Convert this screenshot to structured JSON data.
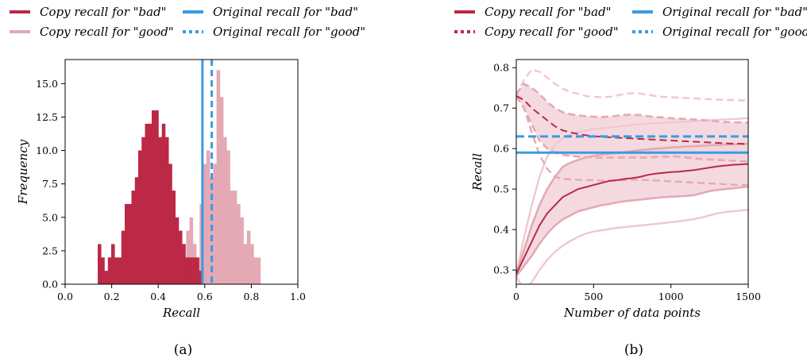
{
  "colors": {
    "bad": "#bb2946",
    "good": "#e4a9b5",
    "orig": "#3a9be2",
    "band": "#f2d3da",
    "faint": "#f0c7d0"
  },
  "chart_data": [
    {
      "type": "histogram",
      "panel_label": "(a)",
      "xlabel": "Recall",
      "ylabel": "Frequency",
      "xlim": [
        0.0,
        1.0
      ],
      "ylim": [
        0,
        16.8
      ],
      "xticks": [
        "0.0",
        "0.2",
        "0.4",
        "0.6",
        "0.8",
        "1.0"
      ],
      "yticks": [
        "0.0",
        "2.5",
        "5.0",
        "7.5",
        "10.0",
        "12.5",
        "15.0"
      ],
      "bin_width": 0.0145,
      "legend": [
        {
          "label": "Copy recall for \"bad\"",
          "style": "solid",
          "color": "bad"
        },
        {
          "label": "Copy recall for \"good\"",
          "style": "solid",
          "color": "good"
        },
        {
          "label": "Original recall for \"bad\"",
          "style": "solid",
          "color": "orig"
        },
        {
          "label": "Original recall for \"good\"",
          "style": "dotted",
          "color": "orig"
        }
      ],
      "series": [
        {
          "name": "Copy recall for \"bad\"",
          "bin_starts": [
            0.14,
            0.1545,
            0.169,
            0.1835,
            0.198,
            0.2125,
            0.227,
            0.2415,
            0.256,
            0.2705,
            0.285,
            0.2995,
            0.314,
            0.3285,
            0.343,
            0.3575,
            0.372,
            0.3865,
            0.401,
            0.4155,
            0.43,
            0.4445,
            0.459,
            0.4735,
            0.488,
            0.5025,
            0.517,
            0.5315,
            0.546,
            0.5605,
            0.575
          ],
          "counts": [
            3,
            2,
            1,
            2,
            3,
            2,
            2,
            4,
            6,
            6,
            7,
            8,
            10,
            11,
            12,
            12,
            13,
            13,
            11,
            12,
            11,
            9,
            7,
            5,
            4,
            3,
            2,
            2,
            2,
            2,
            1
          ]
        },
        {
          "name": "Copy recall for \"good\"",
          "bin_starts": [
            0.52,
            0.5345,
            0.549,
            0.5635,
            0.578,
            0.5925,
            0.607,
            0.6215,
            0.636,
            0.6505,
            0.665,
            0.6795,
            0.694,
            0.7085,
            0.723,
            0.7375,
            0.752,
            0.7665,
            0.781,
            0.7955,
            0.81,
            0.8245
          ],
          "counts": [
            4,
            5,
            3,
            2,
            6,
            9,
            10,
            8,
            9,
            16,
            14,
            11,
            10,
            7,
            7,
            6,
            5,
            3,
            4,
            3,
            2,
            2
          ]
        }
      ],
      "vlines": [
        {
          "name": "Original recall for \"bad\"",
          "x": 0.59,
          "style": "solid"
        },
        {
          "name": "Original recall for \"good\"",
          "x": 0.63,
          "style": "dashed"
        }
      ]
    },
    {
      "type": "line",
      "panel_label": "(b)",
      "xlabel": "Number of data points",
      "ylabel": "Recall",
      "xlim": [
        0,
        1500
      ],
      "ylim": [
        0.265,
        0.82
      ],
      "xticks": [
        "0",
        "500",
        "1000",
        "1500"
      ],
      "yticks": [
        "0.3",
        "0.4",
        "0.5",
        "0.6",
        "0.7",
        "0.8"
      ],
      "legend": [
        {
          "label": "Copy recall for \"bad\"",
          "style": "solid",
          "color": "bad"
        },
        {
          "label": "Copy recall for \"good\"",
          "style": "dotted",
          "color": "bad"
        },
        {
          "label": "Original recall for \"bad\"",
          "style": "solid",
          "color": "orig"
        },
        {
          "label": "Original recall for \"good\"",
          "style": "dotted",
          "color": "orig"
        }
      ],
      "x": [
        0,
        50,
        100,
        150,
        200,
        250,
        300,
        350,
        400,
        450,
        500,
        550,
        600,
        650,
        700,
        750,
        800,
        850,
        900,
        950,
        1000,
        1050,
        1100,
        1150,
        1200,
        1250,
        1300,
        1350,
        1400,
        1450,
        1500
      ],
      "series": [
        {
          "name": "Copy recall for \"bad\"",
          "role": "mean",
          "color": "bad",
          "dash": "solid",
          "values": [
            0.29,
            0.33,
            0.37,
            0.41,
            0.44,
            0.46,
            0.48,
            0.49,
            0.5,
            0.505,
            0.51,
            0.515,
            0.52,
            0.522,
            0.525,
            0.527,
            0.53,
            0.535,
            0.538,
            0.54,
            0.542,
            0.543,
            0.545,
            0.547,
            0.55,
            0.553,
            0.556,
            0.558,
            0.56,
            0.561,
            0.562
          ]
        },
        {
          "name": "bad upper band",
          "role": "band_upper",
          "color": "good",
          "dash": "solid",
          "values": [
            0.29,
            0.35,
            0.41,
            0.46,
            0.5,
            0.53,
            0.555,
            0.565,
            0.572,
            0.578,
            0.582,
            0.585,
            0.587,
            0.589,
            0.591,
            0.594,
            0.596,
            0.598,
            0.6,
            0.601,
            0.603,
            0.604,
            0.605,
            0.606,
            0.607,
            0.608,
            0.609,
            0.61,
            0.61,
            0.611,
            0.612
          ]
        },
        {
          "name": "bad lower band",
          "role": "band_lower",
          "color": "good",
          "dash": "solid",
          "values": [
            0.285,
            0.31,
            0.335,
            0.365,
            0.39,
            0.41,
            0.425,
            0.435,
            0.445,
            0.45,
            0.455,
            0.46,
            0.463,
            0.467,
            0.47,
            0.472,
            0.474,
            0.476,
            0.478,
            0.48,
            0.481,
            0.482,
            0.483,
            0.485,
            0.49,
            0.495,
            0.498,
            0.5,
            0.502,
            0.504,
            0.506
          ]
        },
        {
          "name": "bad faint outer upper",
          "role": "faint",
          "color": "faint",
          "dash": "solid",
          "values": [
            0.29,
            0.38,
            0.46,
            0.53,
            0.58,
            0.61,
            0.625,
            0.635,
            0.64,
            0.645,
            0.648,
            0.65,
            0.652,
            0.654,
            0.656,
            0.658,
            0.66,
            0.662,
            0.663,
            0.664,
            0.665,
            0.666,
            0.667,
            0.668,
            0.669,
            0.67,
            0.671,
            0.672,
            0.673,
            0.674,
            0.675
          ]
        },
        {
          "name": "bad faint outer lower",
          "role": "faint",
          "color": "faint",
          "dash": "solid",
          "values": [
            0.285,
            0.25,
            0.27,
            0.3,
            0.325,
            0.345,
            0.36,
            0.372,
            0.382,
            0.39,
            0.395,
            0.398,
            0.401,
            0.404,
            0.406,
            0.408,
            0.41,
            0.412,
            0.414,
            0.416,
            0.418,
            0.42,
            0.423,
            0.426,
            0.43,
            0.435,
            0.44,
            0.443,
            0.445,
            0.447,
            0.449
          ]
        },
        {
          "name": "Copy recall for \"good\"",
          "role": "mean",
          "color": "bad",
          "dash": "dashed",
          "values": [
            0.73,
            0.72,
            0.7,
            0.685,
            0.67,
            0.655,
            0.645,
            0.64,
            0.636,
            0.633,
            0.631,
            0.629,
            0.628,
            0.627,
            0.626,
            0.625,
            0.624,
            0.623,
            0.622,
            0.621,
            0.62,
            0.619,
            0.618,
            0.617,
            0.616,
            0.615,
            0.614,
            0.613,
            0.612,
            0.612,
            0.611
          ]
        },
        {
          "name": "good upper band",
          "role": "band_upper_dashed",
          "color": "good",
          "dash": "dashed",
          "values": [
            0.735,
            0.76,
            0.75,
            0.735,
            0.715,
            0.7,
            0.69,
            0.685,
            0.682,
            0.68,
            0.679,
            0.678,
            0.679,
            0.681,
            0.683,
            0.684,
            0.683,
            0.68,
            0.678,
            0.677,
            0.675,
            0.674,
            0.673,
            0.672,
            0.671,
            0.669,
            0.667,
            0.666,
            0.665,
            0.665,
            0.664
          ]
        },
        {
          "name": "good lower band",
          "role": "band_lower_dashed",
          "color": "good",
          "dash": "dashed",
          "values": [
            0.73,
            0.7,
            0.66,
            0.62,
            0.6,
            0.59,
            0.585,
            0.582,
            0.58,
            0.579,
            0.578,
            0.577,
            0.578,
            0.578,
            0.578,
            0.578,
            0.578,
            0.578,
            0.579,
            0.58,
            0.58,
            0.58,
            0.578,
            0.576,
            0.574,
            0.573,
            0.572,
            0.571,
            0.57,
            0.569,
            0.568
          ]
        },
        {
          "name": "good faint outer upper",
          "role": "faint_dashed",
          "color": "faint",
          "dash": "dashed",
          "values": [
            0.73,
            0.77,
            0.795,
            0.79,
            0.775,
            0.76,
            0.748,
            0.74,
            0.735,
            0.73,
            0.728,
            0.727,
            0.728,
            0.731,
            0.735,
            0.737,
            0.736,
            0.733,
            0.73,
            0.728,
            0.727,
            0.726,
            0.725,
            0.724,
            0.723,
            0.722,
            0.721,
            0.72,
            0.72,
            0.719,
            0.719
          ]
        },
        {
          "name": "good faint outer lower",
          "role": "faint_dashed",
          "color": "good",
          "dash": "dashed",
          "values": [
            0.73,
            0.7,
            0.64,
            0.585,
            0.55,
            0.53,
            0.525,
            0.524,
            0.523,
            0.522,
            0.522,
            0.521,
            0.521,
            0.522,
            0.522,
            0.523,
            0.523,
            0.522,
            0.521,
            0.52,
            0.519,
            0.518,
            0.517,
            0.516,
            0.515,
            0.514,
            0.513,
            0.512,
            0.511,
            0.51,
            0.51
          ]
        }
      ],
      "hlines": [
        {
          "name": "Original recall for \"bad\"",
          "y": 0.59,
          "style": "solid"
        },
        {
          "name": "Original recall for \"good\"",
          "y": 0.63,
          "style": "dashed"
        }
      ]
    }
  ]
}
